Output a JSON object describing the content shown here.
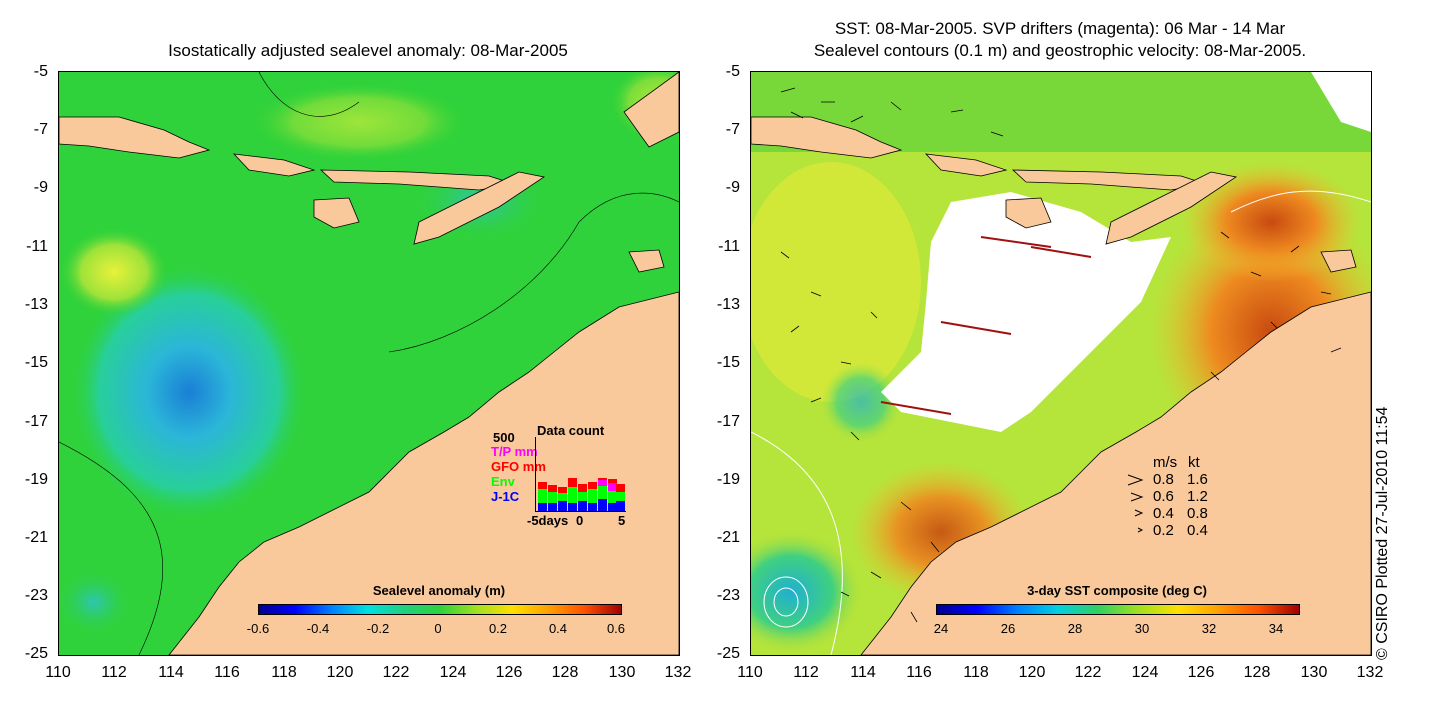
{
  "left_panel": {
    "title": "Isostatically adjusted sealevel anomaly: 08-Mar-2005",
    "colorbar": {
      "title": "Sealevel anomaly (m)",
      "ticks": [
        "-0.6",
        "-0.4",
        "-0.2",
        "0",
        "0.2",
        "0.4",
        "0.6"
      ]
    },
    "data_count": {
      "title": "Data count",
      "max_label": "500",
      "legend": [
        {
          "label": "T/P mm",
          "color": "#ff00ff"
        },
        {
          "label": "GFO mm",
          "color": "#ff0000"
        },
        {
          "label": "Env",
          "color": "#00ff00"
        },
        {
          "label": "J-1C",
          "color": "#0000ff"
        }
      ],
      "x_labels": [
        "-5days",
        "0",
        "5"
      ]
    }
  },
  "right_panel": {
    "title_line1": "SST: 08-Mar-2005. SVP drifters (magenta): 06 Mar - 14 Mar",
    "title_line2": "Sealevel contours (0.1 m) and geostrophic velocity: 08-Mar-2005.",
    "colorbar": {
      "title": "3-day SST composite (deg C)",
      "ticks": [
        "24",
        "26",
        "28",
        "30",
        "32",
        "34"
      ]
    },
    "velocity_legend": {
      "header_ms": "m/s",
      "header_kt": "kt",
      "rows": [
        {
          "ms": "0.8",
          "kt": "1.6"
        },
        {
          "ms": "0.6",
          "kt": "1.2"
        },
        {
          "ms": "0.4",
          "kt": "0.8"
        },
        {
          "ms": "0.2",
          "kt": "0.4"
        }
      ]
    }
  },
  "axes": {
    "y_ticks": [
      "-5",
      "-7",
      "-9",
      "-11",
      "-13",
      "-15",
      "-17",
      "-19",
      "-21",
      "-23",
      "-25"
    ],
    "x_ticks": [
      "110",
      "112",
      "114",
      "116",
      "118",
      "120",
      "122",
      "124",
      "126",
      "128",
      "130",
      "132"
    ]
  },
  "credit": "© CSIRO Plotted 27-Jul-2010 11:54",
  "colors": {
    "land": "#f9c89b",
    "ocean_green": "#2fd23a",
    "sst_white": "#ffffff"
  }
}
